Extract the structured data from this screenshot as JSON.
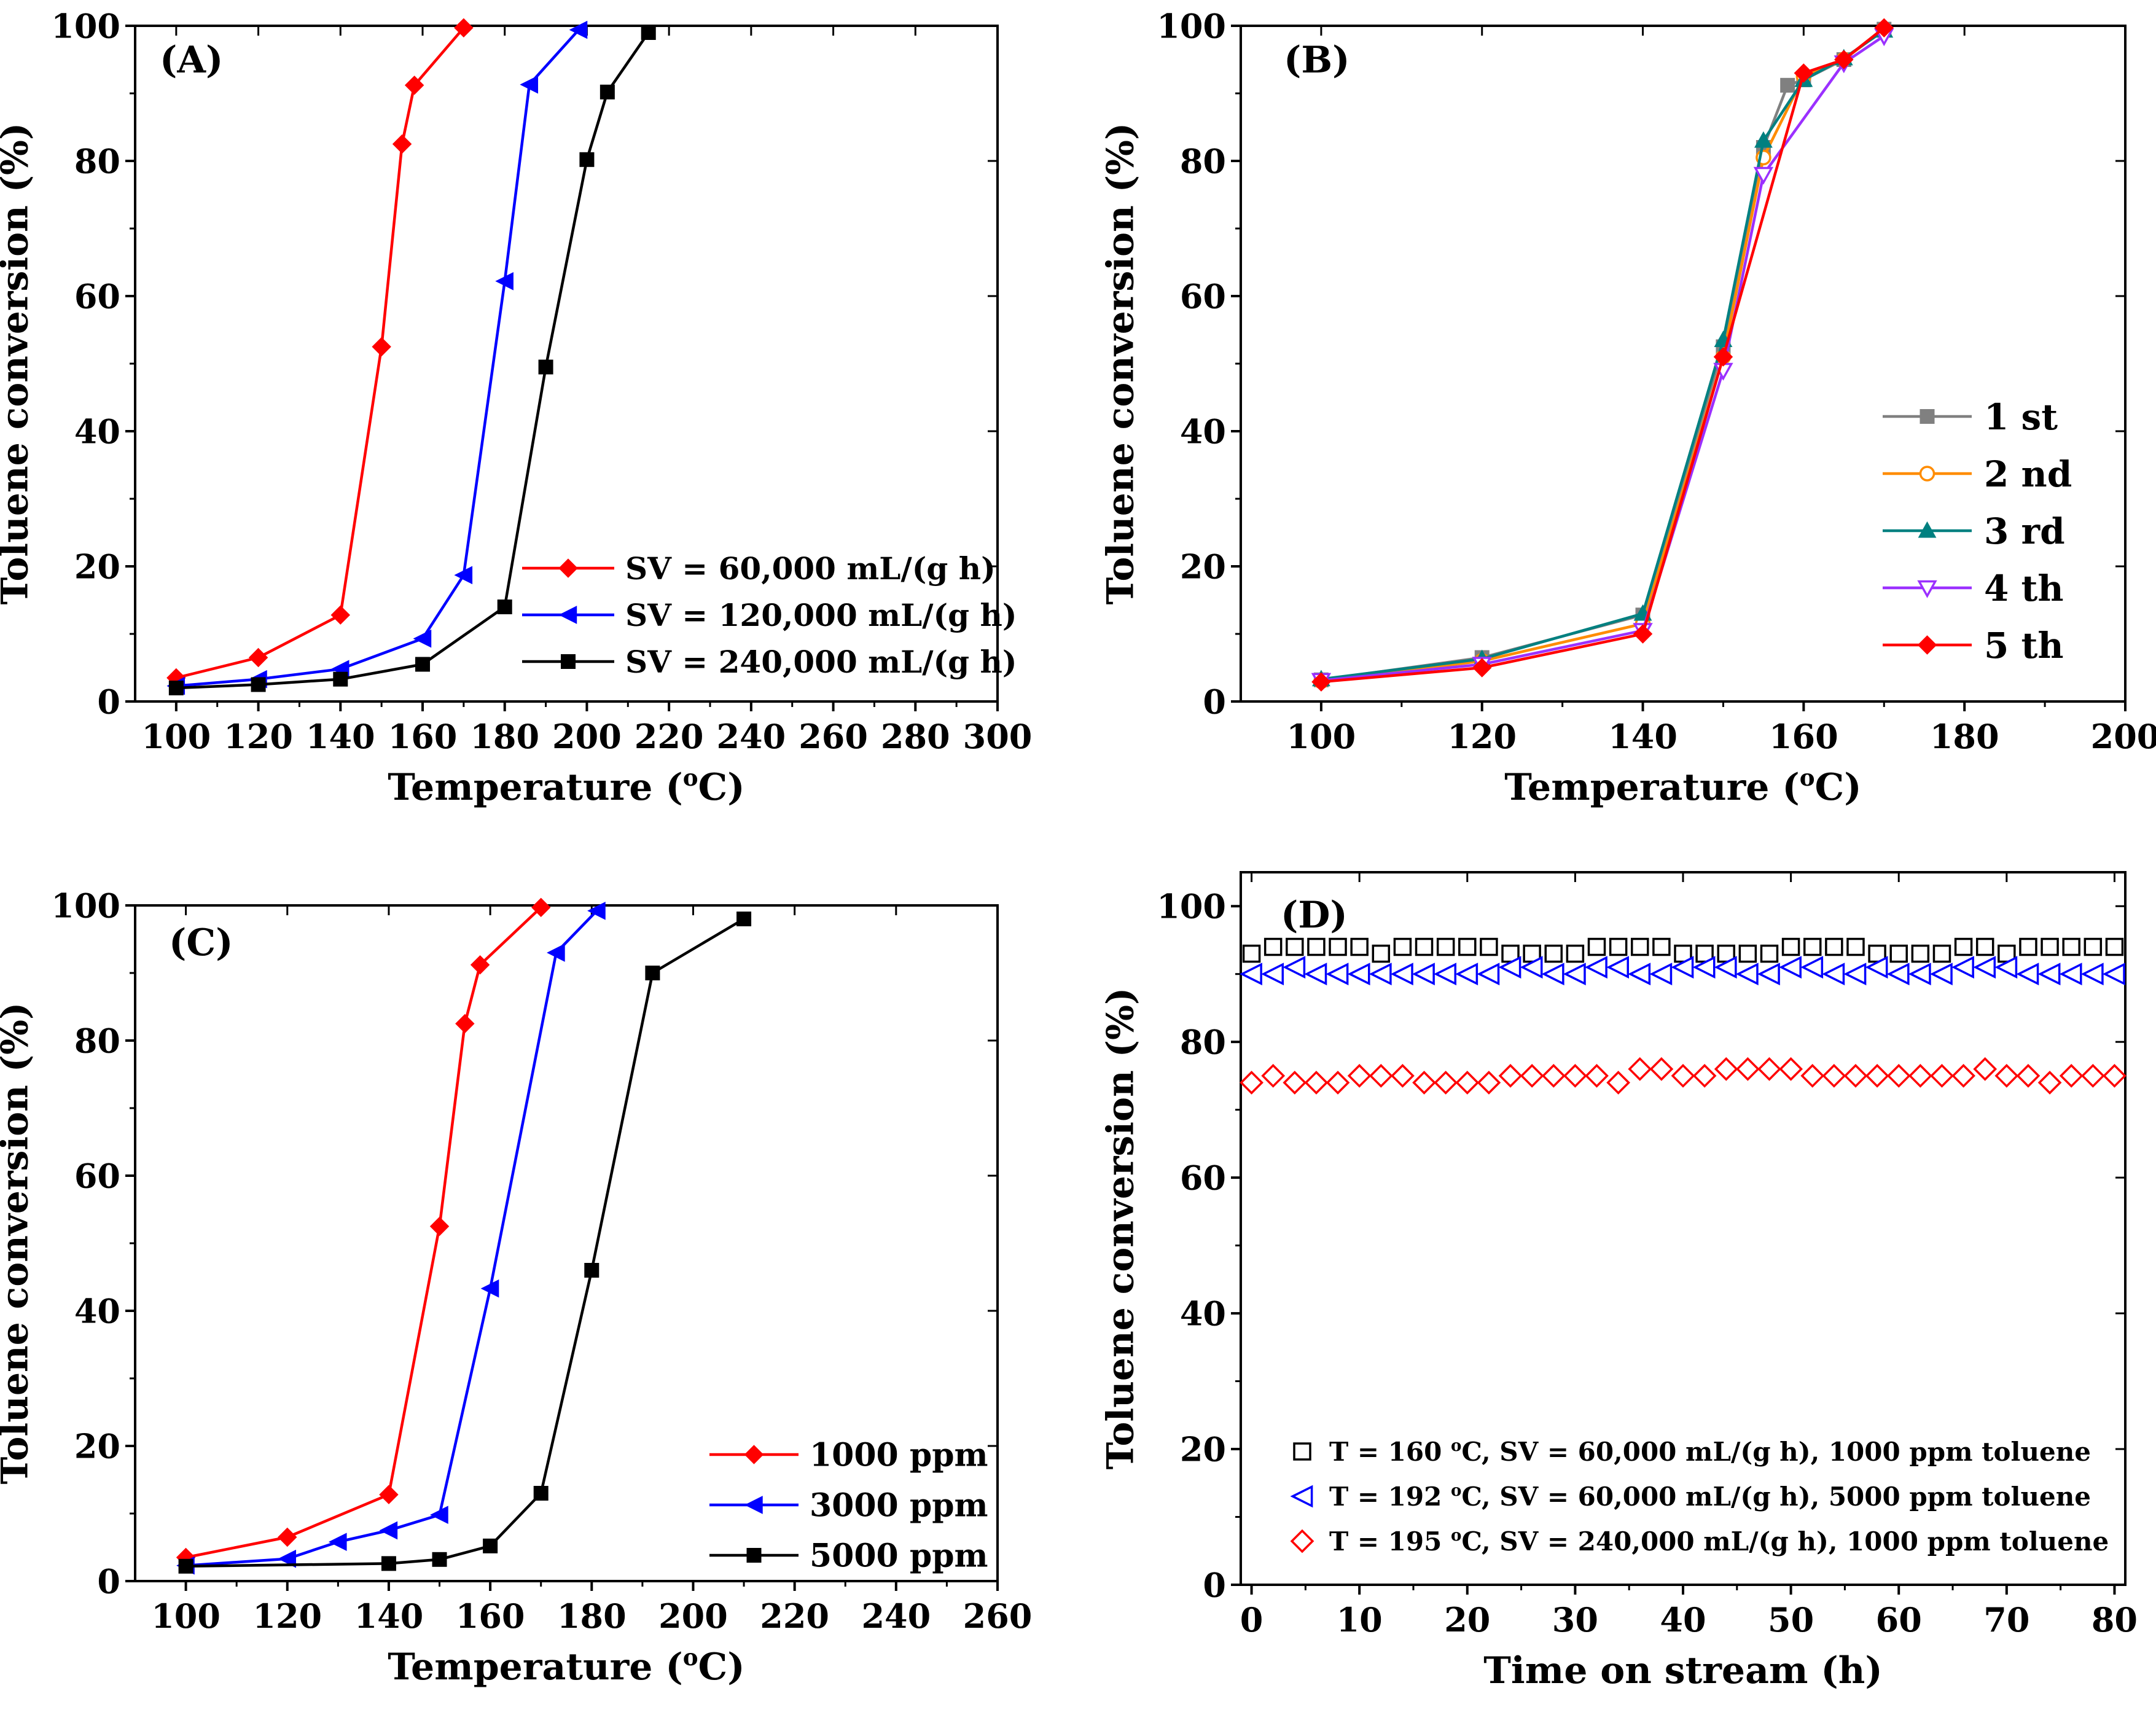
{
  "chart_data": [
    {
      "panel": "(A)",
      "type": "line",
      "xlabel": "Temperature (oC)",
      "ylabel": "Toluene conversion (%)",
      "xlim": [
        90,
        300
      ],
      "ylim": [
        0,
        100
      ],
      "xticks": [
        100,
        120,
        140,
        160,
        180,
        200,
        220,
        240,
        260,
        280,
        300
      ],
      "yticks": [
        0,
        20,
        40,
        60,
        80,
        100
      ],
      "legend_position": "bottom-right",
      "series": [
        {
          "name": "SV = 60,000  mL/(g h)",
          "color": "#ff0000",
          "marker": "diamond",
          "x": [
            100,
            120,
            140,
            150,
            155,
            158,
            170
          ],
          "y": [
            3.5,
            6.5,
            12.8,
            52.5,
            82.5,
            91.2,
            99.7
          ]
        },
        {
          "name": "SV = 120,000 mL/(g h)",
          "color": "#0000ff",
          "marker": "triangle-left",
          "x": [
            100,
            120,
            140,
            160,
            170,
            180,
            186,
            198
          ],
          "y": [
            2.3,
            3.3,
            4.8,
            9.3,
            18.7,
            62.2,
            91.3,
            99.4
          ]
        },
        {
          "name": "SV = 240,000 mL/(g h)",
          "color": "#000000",
          "marker": "square",
          "x": [
            100,
            120,
            140,
            160,
            180,
            190,
            200,
            205,
            215
          ],
          "y": [
            2.0,
            2.5,
            3.3,
            5.5,
            14.0,
            49.5,
            80.2,
            90.2,
            99.0
          ]
        }
      ]
    },
    {
      "panel": "(B)",
      "type": "line",
      "xlabel": "Temperature (oC)",
      "ylabel": "Toluene conversion (%)",
      "xlim": [
        90,
        200
      ],
      "ylim": [
        0,
        100
      ],
      "xticks": [
        100,
        120,
        140,
        160,
        180,
        200
      ],
      "yticks": [
        0,
        20,
        40,
        60,
        80,
        100
      ],
      "legend_position": "right",
      "series": [
        {
          "name": "1 st",
          "color": "#808080",
          "marker": "square",
          "x": [
            100,
            120,
            140,
            150,
            155,
            158,
            160,
            165,
            170
          ],
          "y": [
            3.2,
            6.5,
            12.8,
            52.5,
            82.0,
            91.2,
            92.0,
            95.0,
            99.5
          ]
        },
        {
          "name": "2 nd",
          "color": "#ff8c00",
          "marker": "circle-open",
          "x": [
            100,
            120,
            140,
            150,
            155,
            160,
            165,
            170
          ],
          "y": [
            3.0,
            6.0,
            11.5,
            51.0,
            80.5,
            92.5,
            95.0,
            99.5
          ]
        },
        {
          "name": "3 rd",
          "color": "#008080",
          "marker": "triangle-up",
          "x": [
            100,
            120,
            140,
            150,
            155,
            160,
            165,
            170
          ],
          "y": [
            3.3,
            6.3,
            13.0,
            53.5,
            83.0,
            92.0,
            95.2,
            99.3
          ]
        },
        {
          "name": "4 th",
          "color": "#9b30ff",
          "marker": "triangle-down-open",
          "x": [
            100,
            120,
            140,
            150,
            155,
            165,
            170
          ],
          "y": [
            3.1,
            5.5,
            10.5,
            49.0,
            78.0,
            94.5,
            98.5
          ]
        },
        {
          "name": "5 th",
          "color": "#ff0000",
          "marker": "diamond",
          "x": [
            100,
            120,
            140,
            150,
            160,
            165,
            170
          ],
          "y": [
            2.9,
            5.0,
            10.0,
            51.0,
            93.0,
            95.0,
            99.7
          ]
        }
      ]
    },
    {
      "panel": "(C)",
      "type": "line",
      "xlabel": "Temperature (oC)",
      "ylabel": "Toluene conversion (%)",
      "xlim": [
        90,
        260
      ],
      "ylim": [
        0,
        100
      ],
      "xticks": [
        100,
        120,
        140,
        160,
        180,
        200,
        220,
        240,
        260
      ],
      "yticks": [
        0,
        20,
        40,
        60,
        80,
        100
      ],
      "legend_position": "bottom-right",
      "series": [
        {
          "name": "1000 ppm",
          "color": "#ff0000",
          "marker": "diamond",
          "x": [
            100,
            120,
            140,
            150,
            155,
            158,
            170
          ],
          "y": [
            3.5,
            6.5,
            12.8,
            52.5,
            82.5,
            91.2,
            99.7
          ]
        },
        {
          "name": "3000 ppm",
          "color": "#0000ff",
          "marker": "triangle-left",
          "x": [
            100,
            120,
            130,
            140,
            150,
            160,
            173,
            181
          ],
          "y": [
            2.3,
            3.3,
            5.8,
            7.5,
            9.8,
            43.3,
            93.0,
            99.2
          ]
        },
        {
          "name": "5000 ppm",
          "color": "#000000",
          "marker": "square",
          "x": [
            100,
            140,
            150,
            160,
            170,
            180,
            192,
            210
          ],
          "y": [
            2.2,
            2.6,
            3.2,
            5.2,
            13.0,
            46.0,
            90.0,
            98.0
          ]
        }
      ]
    },
    {
      "panel": "(D)",
      "type": "scatter",
      "xlabel": "Time on stream (h)",
      "ylabel": "Toluene conversion (%)",
      "xlim": [
        -1,
        81
      ],
      "ylim": [
        0,
        105
      ],
      "xticks": [
        0,
        10,
        20,
        30,
        40,
        50,
        60,
        70,
        80
      ],
      "yticks": [
        0,
        20,
        40,
        60,
        80,
        100
      ],
      "legend_position": "bottom-left",
      "series": [
        {
          "name": "T = 160 oC, SV = 60,000 mL/(g h), 1000 ppm toluene",
          "color": "#000000",
          "marker": "square-open",
          "x": [
            0,
            2,
            4,
            6,
            8,
            10,
            12,
            14,
            16,
            18,
            20,
            22,
            24,
            26,
            28,
            30,
            32,
            34,
            36,
            38,
            40,
            42,
            44,
            46,
            48,
            50,
            52,
            54,
            56,
            58,
            60,
            62,
            64,
            66,
            68,
            70,
            72,
            74,
            76,
            78,
            80
          ],
          "y": [
            93,
            94,
            94,
            94,
            94,
            94,
            93,
            94,
            94,
            94,
            94,
            94,
            93,
            93,
            93,
            93,
            94,
            94,
            94,
            94,
            93,
            93,
            93,
            93,
            93,
            94,
            94,
            94,
            94,
            93,
            93,
            93,
            93,
            94,
            94,
            93,
            94,
            94,
            94,
            94,
            94
          ]
        },
        {
          "name": "T = 192 oC, SV = 60,000 mL/(g h), 5000 ppm toluene",
          "color": "#0000ff",
          "marker": "triangle-left-open",
          "x": [
            0,
            2,
            4,
            6,
            8,
            10,
            12,
            14,
            16,
            18,
            20,
            22,
            24,
            26,
            28,
            30,
            32,
            34,
            36,
            38,
            40,
            42,
            44,
            46,
            48,
            50,
            52,
            54,
            56,
            58,
            60,
            62,
            64,
            66,
            68,
            70,
            72,
            74,
            76,
            78,
            80
          ],
          "y": [
            90,
            90,
            91,
            90,
            90,
            90,
            90,
            90,
            90,
            90,
            90,
            90,
            91,
            91,
            90,
            90,
            91,
            91,
            90,
            90,
            91,
            91,
            91,
            90,
            90,
            91,
            91,
            90,
            90,
            91,
            90,
            90,
            90,
            91,
            91,
            91,
            90,
            90,
            90,
            90,
            90
          ]
        },
        {
          "name": "T = 195 oC, SV = 240,000 mL/(g h), 1000 ppm toluene",
          "color": "#ff0000",
          "marker": "diamond-open",
          "x": [
            0,
            2,
            4,
            6,
            8,
            10,
            12,
            14,
            16,
            18,
            20,
            22,
            24,
            26,
            28,
            30,
            32,
            34,
            36,
            38,
            40,
            42,
            44,
            46,
            48,
            50,
            52,
            54,
            56,
            58,
            60,
            62,
            64,
            66,
            68,
            70,
            72,
            74,
            76,
            78,
            80
          ],
          "y": [
            74,
            75,
            74,
            74,
            74,
            75,
            75,
            75,
            74,
            74,
            74,
            74,
            75,
            75,
            75,
            75,
            75,
            74,
            76,
            76,
            75,
            75,
            76,
            76,
            76,
            76,
            75,
            75,
            75,
            75,
            75,
            75,
            75,
            75,
            76,
            75,
            75,
            74,
            75,
            75,
            75
          ]
        }
      ]
    }
  ]
}
